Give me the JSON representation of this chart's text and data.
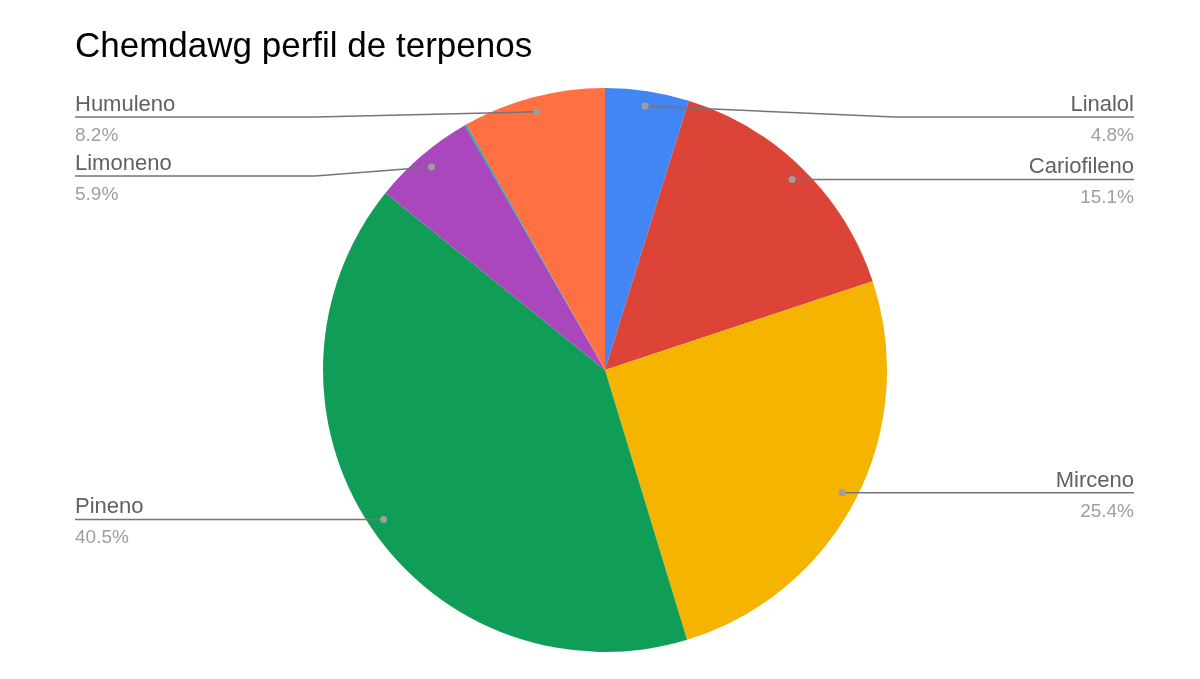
{
  "chart_data": {
    "type": "pie",
    "title": "Chemdawg perfil de terpenos",
    "categories": [
      "Linalol",
      "Cariofileno",
      "Mirceno",
      "Pineno",
      "Limoneno",
      null,
      "Humuleno"
    ],
    "values": [
      4.8,
      15.1,
      25.4,
      40.5,
      5.9,
      0.1,
      8.2
    ],
    "colors": [
      "#4285f4",
      "#db4437",
      "#f4b400",
      "#0f9d58",
      "#ab47bc",
      "#00acc1",
      "#ff7043"
    ],
    "value_labels": [
      "4.8%",
      "15.1%",
      "25.4%",
      "40.5%",
      "5.9%",
      null,
      "8.2%"
    ]
  }
}
